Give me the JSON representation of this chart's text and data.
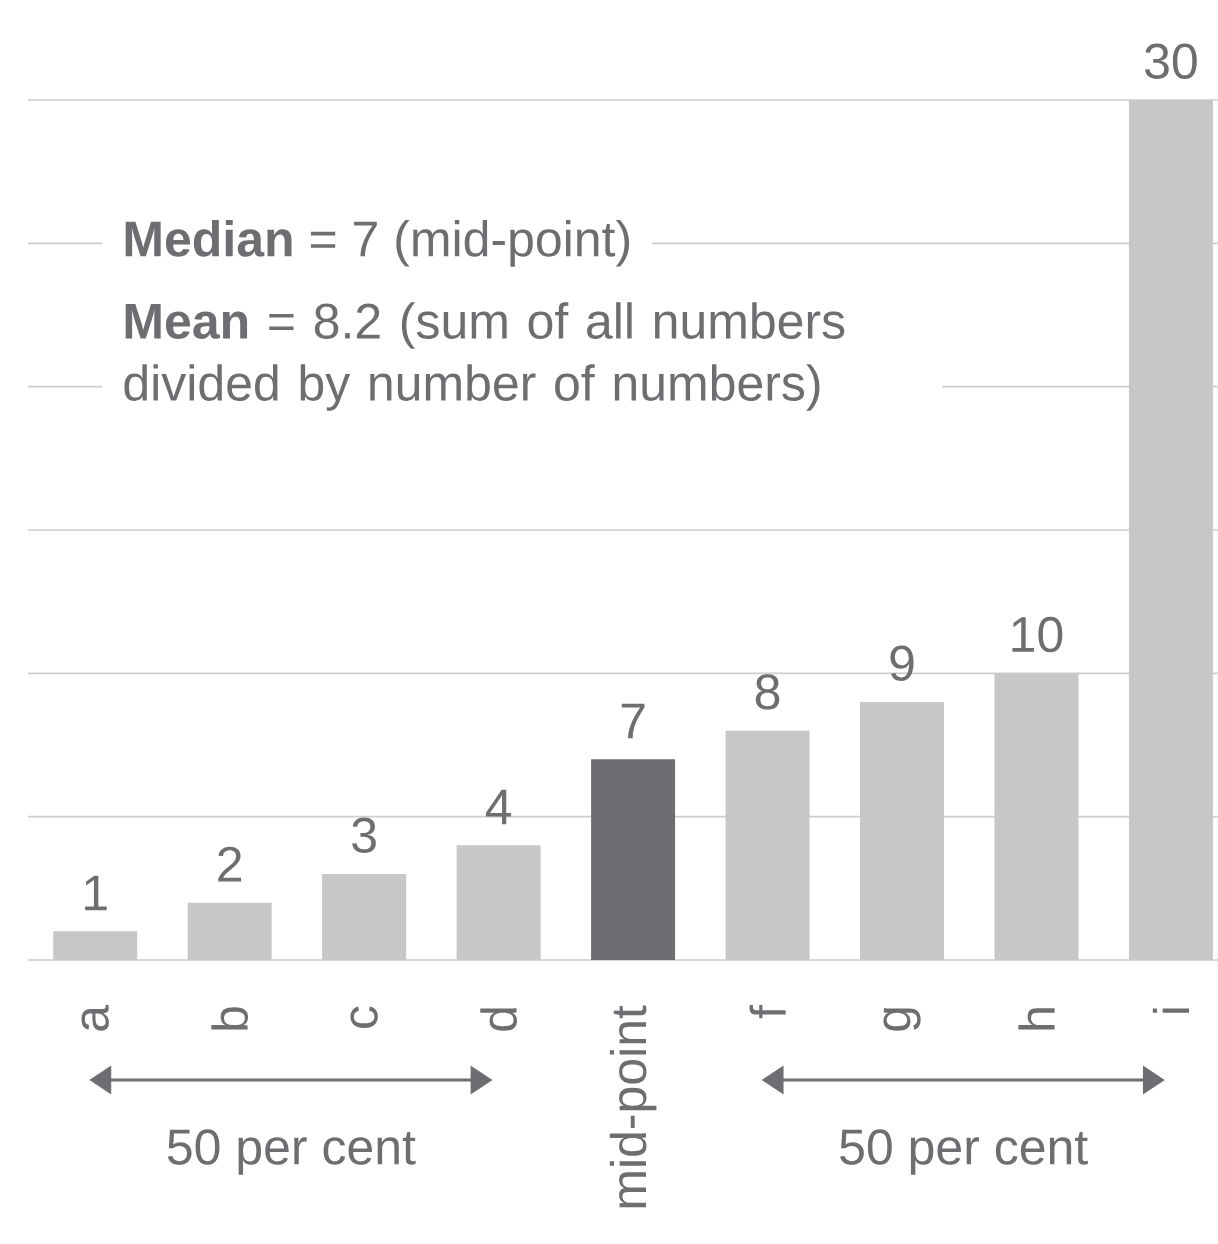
{
  "chart_data": {
    "type": "bar",
    "categories": [
      "a",
      "b",
      "c",
      "d",
      "mid-point",
      "f",
      "g",
      "h",
      "i"
    ],
    "values": [
      1,
      2,
      3,
      4,
      7,
      8,
      9,
      10,
      30
    ],
    "colors": [
      "#c6c7c9",
      "#c6c7c9",
      "#c6c7c9",
      "#c6c7c9",
      "#6d6e71",
      "#c6c7c9",
      "#c6c7c9",
      "#c6c7c9",
      "#c6c7c9"
    ],
    "ylim": [
      0,
      30
    ],
    "yticks": [
      {
        "value": 5,
        "label": null
      },
      {
        "value": 10,
        "label": null
      },
      {
        "value": 15,
        "label": null
      },
      {
        "value": 20,
        "label": null
      },
      {
        "value": 25,
        "label": null
      },
      {
        "value": 30,
        "label": null
      }
    ],
    "tick_labels": "x",
    "grid": "y",
    "data_labels": true,
    "annotations": [
      "**Median** = 7 (mid-point)",
      "**Mean** = 8.2 (sum of all numbers divided by number of numbers)",
      "50 per cent",
      "50 per cent"
    ]
  }
}
